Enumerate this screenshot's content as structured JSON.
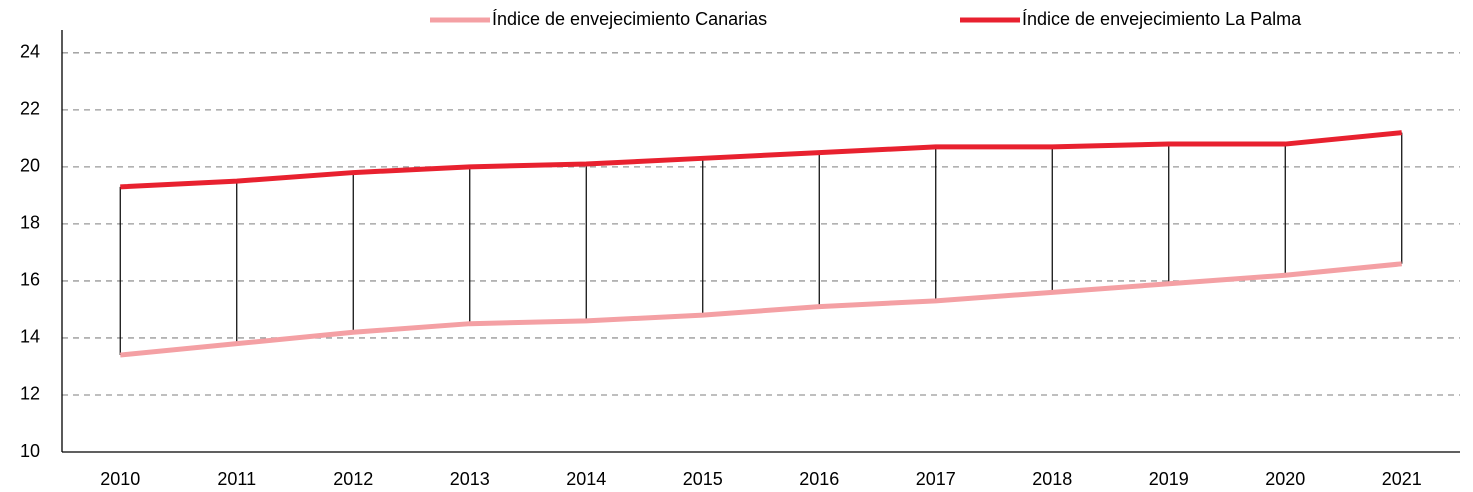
{
  "chart_data": {
    "type": "line",
    "categories": [
      "2010",
      "2011",
      "2012",
      "2013",
      "2014",
      "2015",
      "2016",
      "2017",
      "2018",
      "2019",
      "2020",
      "2021"
    ],
    "series": [
      {
        "name": "Índice de envejecimiento Canarias",
        "color": "#f4a0a4",
        "values": [
          13.4,
          13.8,
          14.2,
          14.5,
          14.6,
          14.8,
          15.1,
          15.3,
          15.6,
          15.9,
          16.2,
          16.6
        ]
      },
      {
        "name": "Índice de envejecimiento La Palma",
        "color": "#e8212f",
        "values": [
          19.3,
          19.5,
          19.8,
          20.0,
          20.1,
          20.3,
          20.5,
          20.7,
          20.7,
          20.8,
          20.8,
          21.2
        ]
      }
    ],
    "ylim": [
      10,
      24.8
    ],
    "yticks": [
      10,
      12,
      14,
      16,
      18,
      20,
      22,
      24
    ],
    "grid": true,
    "high_low_lines": true
  }
}
